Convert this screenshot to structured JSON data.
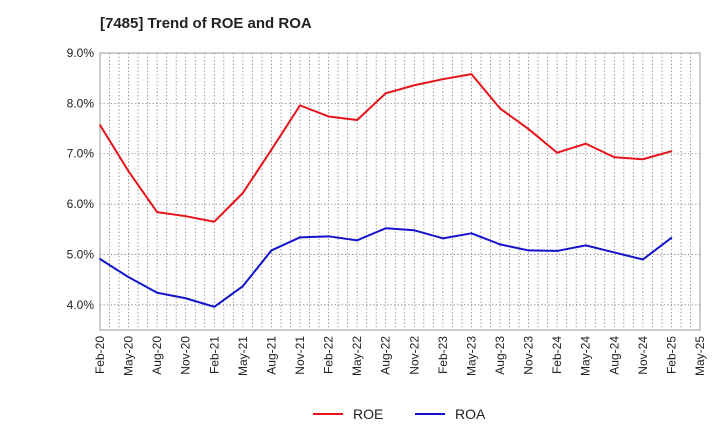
{
  "chart_data": {
    "type": "line",
    "title": "[7485]  Trend of ROE and ROA",
    "xlabel": "",
    "ylabel": "",
    "x": [
      "Feb-20",
      "May-20",
      "Aug-20",
      "Nov-20",
      "Feb-21",
      "May-21",
      "Aug-21",
      "Nov-21",
      "Feb-22",
      "May-22",
      "Aug-22",
      "Nov-22",
      "Feb-23",
      "May-23",
      "Aug-23",
      "Nov-23",
      "Feb-24",
      "May-24",
      "Aug-24",
      "Nov-24",
      "Feb-25",
      "May-25"
    ],
    "x_tick_labels": [
      "Feb-20",
      "May-20",
      "Aug-20",
      "Nov-20",
      "Feb-21",
      "May-21",
      "Aug-21",
      "Nov-21",
      "Feb-22",
      "May-22",
      "Aug-22",
      "Nov-22",
      "Feb-23",
      "May-23",
      "Aug-23",
      "Nov-23",
      "Feb-24",
      "May-24",
      "Aug-24",
      "Nov-24",
      "Feb-25",
      "May-25"
    ],
    "y_tick_labels": [
      "4.0%",
      "5.0%",
      "6.0%",
      "7.0%",
      "8.0%",
      "9.0%"
    ],
    "y_ticks": [
      4.0,
      5.0,
      6.0,
      7.0,
      8.0,
      9.0
    ],
    "ylim": [
      3.5,
      9.0
    ],
    "grid": true,
    "legend_position": "bottom",
    "series": [
      {
        "name": "ROE",
        "color": "#e8141b",
        "values": [
          7.57,
          6.65,
          5.84,
          5.76,
          5.65,
          6.22,
          7.08,
          7.96,
          7.74,
          7.67,
          8.2,
          8.36,
          8.48,
          8.58,
          7.9,
          7.49,
          7.02,
          7.2,
          6.93,
          6.89,
          7.05,
          null
        ]
      },
      {
        "name": "ROA",
        "color": "#1414cc",
        "values": [
          4.91,
          4.55,
          4.24,
          4.13,
          3.96,
          4.37,
          5.08,
          5.34,
          5.36,
          5.28,
          5.52,
          5.48,
          5.32,
          5.42,
          5.2,
          5.08,
          5.07,
          5.18,
          5.04,
          4.9,
          5.33,
          null
        ]
      }
    ]
  }
}
